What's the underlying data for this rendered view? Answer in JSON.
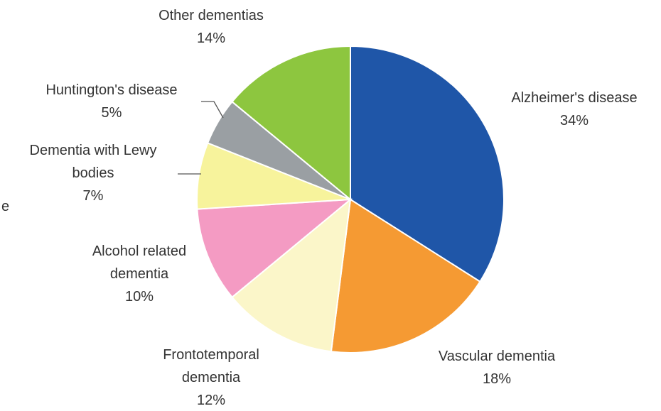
{
  "chart_data": {
    "type": "pie",
    "categories": [
      "Alzheimer's disease",
      "Vascular dementia",
      "Frontotemporal dementia",
      "Alcohol related dementia",
      "Dementia with Lewy bodies",
      "Huntington's disease",
      "Other dementias"
    ],
    "values": [
      34,
      18,
      12,
      10,
      7,
      5,
      14
    ],
    "value_labels": [
      "34%",
      "18%",
      "12%",
      "10%",
      "7%",
      "5%",
      "14%"
    ],
    "colors": [
      "#1f56a8",
      "#f59a33",
      "#fbf6c9",
      "#f49bc3",
      "#f7f39c",
      "#9a9fa3",
      "#8dc63f"
    ],
    "annotations": [
      "e"
    ]
  }
}
